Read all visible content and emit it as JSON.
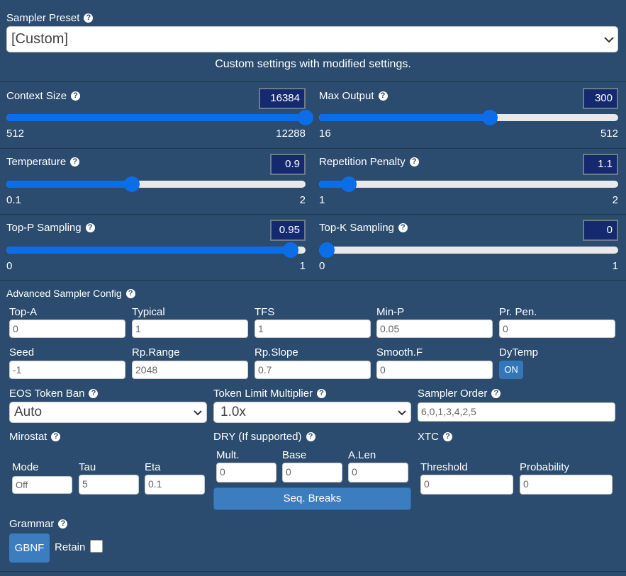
{
  "preset": {
    "label": "Sampler Preset",
    "value": "[Custom]",
    "description": "Custom settings with modified settings."
  },
  "sliders": {
    "context_size": {
      "label": "Context Size",
      "value": "16384",
      "min": "512",
      "max": "12288",
      "fraction": 1.0
    },
    "max_output": {
      "label": "Max Output",
      "value": "300",
      "min": "16",
      "max": "512",
      "fraction": 0.57
    },
    "temperature": {
      "label": "Temperature",
      "value": "0.9",
      "min": "0.1",
      "max": "2",
      "fraction": 0.42
    },
    "rep_penalty": {
      "label": "Repetition Penalty",
      "value": "1.1",
      "min": "1",
      "max": "2",
      "fraction": 0.1
    },
    "top_p": {
      "label": "Top-P Sampling",
      "value": "0.95",
      "min": "0",
      "max": "1",
      "fraction": 0.95
    },
    "top_k": {
      "label": "Top-K Sampling",
      "value": "0",
      "min": "0",
      "max": "1",
      "fraction": 0.0
    }
  },
  "advanced": {
    "title": "Advanced Sampler Config",
    "top_a": {
      "label": "Top-A",
      "value": "0"
    },
    "typical": {
      "label": "Typical",
      "value": "1"
    },
    "tfs": {
      "label": "TFS",
      "value": "1"
    },
    "min_p": {
      "label": "Min-P",
      "value": "0.05"
    },
    "pr_pen": {
      "label": "Pr. Pen.",
      "value": "0"
    },
    "seed": {
      "label": "Seed",
      "value": "-1"
    },
    "rp_range": {
      "label": "Rp.Range",
      "value": "2048"
    },
    "rp_slope": {
      "label": "Rp.Slope",
      "value": "0.7"
    },
    "smooth_f": {
      "label": "Smooth.F",
      "value": "0"
    },
    "dytemp": {
      "label": "DyTemp",
      "value": "ON"
    }
  },
  "eos": {
    "label": "EOS Token Ban",
    "value": "Auto"
  },
  "token_limit": {
    "label": "Token Limit Multiplier",
    "value": "1.0x"
  },
  "sampler_order": {
    "label": "Sampler Order",
    "value": "6,0,1,3,4,2,5"
  },
  "mirostat": {
    "label": "Mirostat",
    "mode": {
      "label": "Mode",
      "value": "Off"
    },
    "tau": {
      "label": "Tau",
      "value": "5"
    },
    "eta": {
      "label": "Eta",
      "value": "0.1"
    }
  },
  "dry": {
    "label": "DRY (If supported)",
    "mult": {
      "label": "Mult.",
      "value": "0"
    },
    "base": {
      "label": "Base",
      "value": "0"
    },
    "alen": {
      "label": "A.Len",
      "value": "0"
    },
    "seq_breaks": "Seq. Breaks"
  },
  "xtc": {
    "label": "XTC",
    "threshold": {
      "label": "Threshold",
      "value": "0"
    },
    "probability": {
      "label": "Probability",
      "value": "0"
    }
  },
  "grammar": {
    "label": "Grammar",
    "gbnf": "GBNF",
    "retain": "Retain"
  },
  "help_glyph": "?"
}
